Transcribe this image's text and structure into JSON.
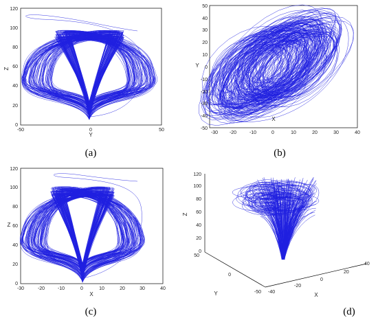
{
  "series_color": "#1f1fe0",
  "panel_labels": [
    "(a)",
    "(b)",
    "(c)",
    "(d)"
  ],
  "chart_data": [
    {
      "type": "line",
      "panel": "(a)",
      "xlabel": "Y",
      "ylabel": "Z",
      "xlim": [
        -50,
        50
      ],
      "ylim": [
        0,
        120
      ],
      "xticks": [
        "-50",
        "0",
        "50"
      ],
      "yticks": [
        "0",
        "20",
        "40",
        "60",
        "80",
        "100",
        "120"
      ],
      "trajectory": "projection of chaotic attractor onto Y-Z plane"
    },
    {
      "type": "line",
      "panel": "(b)",
      "xlabel": "X",
      "ylabel": "Y",
      "xlim": [
        -30,
        40
      ],
      "ylim": [
        -50,
        50
      ],
      "xticks": [
        "-30",
        "-20",
        "-10",
        "0",
        "10",
        "20",
        "30",
        "40"
      ],
      "yticks": [
        "-50",
        "-40",
        "-30",
        "-20",
        "-10",
        "0",
        "10",
        "20",
        "30",
        "40",
        "50"
      ],
      "trajectory": "projection of chaotic attractor onto X-Y plane"
    },
    {
      "type": "line",
      "panel": "(c)",
      "xlabel": "X",
      "ylabel": "Z",
      "xlim": [
        -30,
        40
      ],
      "ylim": [
        0,
        120
      ],
      "xticks": [
        "-30",
        "-20",
        "-10",
        "0",
        "10",
        "20",
        "30",
        "40"
      ],
      "yticks": [
        "0",
        "20",
        "40",
        "60",
        "80",
        "100",
        "120"
      ],
      "trajectory": "projection of chaotic attractor onto X-Z plane"
    },
    {
      "type": "line",
      "panel": "(d)",
      "xlabel": "X",
      "ylabel": "Y",
      "zlabel": "Z",
      "xticks": [
        "-40",
        "-20",
        "0",
        "20",
        "40"
      ],
      "yticks": [
        "-50",
        "0",
        "50"
      ],
      "zticks": [
        "0",
        "20",
        "40",
        "60",
        "80",
        "100",
        "120"
      ],
      "trajectory": "3-D chaotic attractor"
    }
  ]
}
